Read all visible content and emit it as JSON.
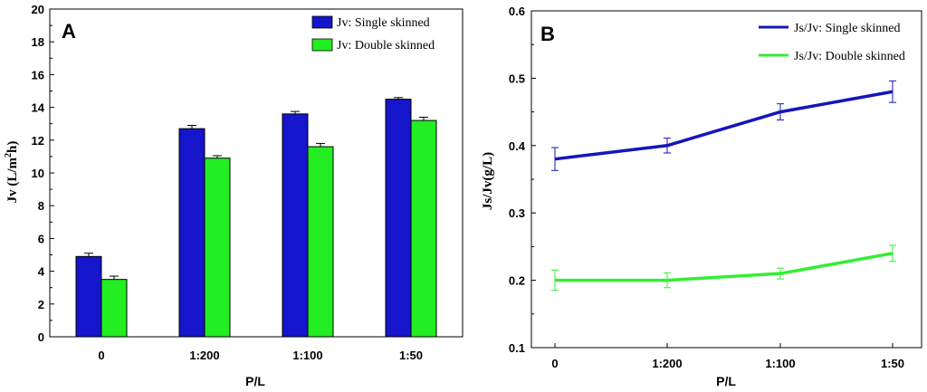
{
  "chart_data": [
    {
      "type": "bar",
      "panel_label": "A",
      "categories": [
        "0",
        "1:200",
        "1:100",
        "1:50"
      ],
      "xlabel": "P/L",
      "ylabel_main": "Jv (L/m",
      "ylabel_sup": "2",
      "ylabel_end": "h)",
      "ylim": [
        0,
        20
      ],
      "yticks": [
        0,
        2,
        4,
        6,
        8,
        10,
        12,
        14,
        16,
        18,
        20
      ],
      "legend_position": "top-right",
      "series": [
        {
          "name": "Jv: Single skinned",
          "color": "#1515cc",
          "values": [
            4.9,
            12.7,
            13.6,
            14.5
          ],
          "errors": [
            0.2,
            0.2,
            0.15,
            0.1
          ]
        },
        {
          "name": "Jv: Double skinned",
          "color": "#22ee22",
          "values": [
            3.5,
            10.9,
            11.6,
            13.2
          ],
          "errors": [
            0.2,
            0.15,
            0.2,
            0.2
          ]
        }
      ]
    },
    {
      "type": "line",
      "panel_label": "B",
      "categories": [
        "0",
        "1:200",
        "1:100",
        "1:50"
      ],
      "xlabel": "P/L",
      "ylabel": "Js/Jv(g/L)",
      "ylim": [
        0.1,
        0.6
      ],
      "yticks": [
        "0.1",
        "0.2",
        "0.3",
        "0.4",
        "0.5",
        "0.6"
      ],
      "legend_position": "top-right",
      "series": [
        {
          "name": "Js/Jv: Single skinned",
          "color": "#1515bb",
          "values": [
            0.38,
            0.4,
            0.45,
            0.48
          ],
          "errors": [
            0.017,
            0.011,
            0.012,
            0.016
          ]
        },
        {
          "name": "Js/Jv: Double skinned",
          "color": "#33ee33",
          "values": [
            0.2,
            0.2,
            0.21,
            0.24
          ],
          "errors": [
            0.015,
            0.011,
            0.008,
            0.012
          ]
        }
      ]
    }
  ]
}
